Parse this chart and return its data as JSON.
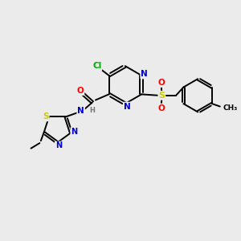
{
  "background_color": "#ebebeb",
  "figsize": [
    3.0,
    3.0
  ],
  "dpi": 100,
  "atom_colors": {
    "C": "#000000",
    "N": "#0000cc",
    "O": "#ff0000",
    "S": "#cccc00",
    "Cl": "#00aa00",
    "H": "#777777"
  },
  "bond_color": "#000000",
  "bond_lw": 1.4,
  "font_size": 7.5,
  "font_size_small": 6.0
}
